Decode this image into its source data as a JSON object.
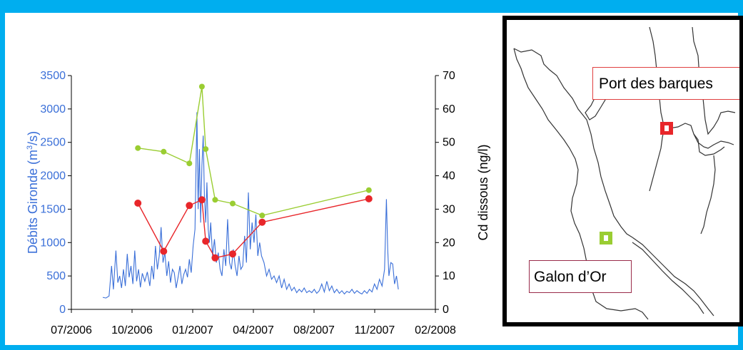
{
  "chart_data": {
    "type": "line",
    "x_axis": {
      "tick_labels": [
        "07/2006",
        "10/2006",
        "01/2007",
        "04/2007",
        "08/2007",
        "11/2007",
        "02/2008"
      ],
      "range": [
        "2006-07-01",
        "2008-02-01"
      ]
    },
    "y_left": {
      "label_pre": "Débits Gironde  (m",
      "label_sup": "3",
      "label_post": "/s)",
      "ticks": [
        "0",
        "500",
        "1000",
        "1500",
        "2000",
        "2500",
        "3000",
        "3500"
      ],
      "range": [
        0,
        3500
      ],
      "color": "#3a6fd8"
    },
    "y_right": {
      "label": "Cd dissous (ng/l)",
      "ticks": [
        "0",
        "10",
        "20",
        "30",
        "40",
        "50",
        "60",
        "70"
      ],
      "range": [
        0,
        70
      ]
    },
    "discharge_series": {
      "axis": "left",
      "color": "#3a6fd8",
      "points": [
        [
          "2006-08-20",
          180
        ],
        [
          "2006-08-25",
          170
        ],
        [
          "2006-08-30",
          200
        ],
        [
          "2006-09-03",
          650
        ],
        [
          "2006-09-06",
          300
        ],
        [
          "2006-09-10",
          880
        ],
        [
          "2006-09-13",
          400
        ],
        [
          "2006-09-16",
          500
        ],
        [
          "2006-09-19",
          320
        ],
        [
          "2006-09-22",
          600
        ],
        [
          "2006-09-25",
          350
        ],
        [
          "2006-09-28",
          830
        ],
        [
          "2006-10-01",
          480
        ],
        [
          "2006-10-04",
          650
        ],
        [
          "2006-10-07",
          380
        ],
        [
          "2006-10-10",
          880
        ],
        [
          "2006-10-13",
          420
        ],
        [
          "2006-10-16",
          600
        ],
        [
          "2006-10-19",
          330
        ],
        [
          "2006-10-22",
          540
        ],
        [
          "2006-10-26",
          420
        ],
        [
          "2006-10-30",
          560
        ],
        [
          "2006-11-03",
          350
        ],
        [
          "2006-11-06",
          650
        ],
        [
          "2006-11-09",
          450
        ],
        [
          "2006-11-12",
          950
        ],
        [
          "2006-11-15",
          600
        ],
        [
          "2006-11-18",
          800
        ],
        [
          "2006-11-21",
          1230
        ],
        [
          "2006-11-24",
          700
        ],
        [
          "2006-11-27",
          850
        ],
        [
          "2006-11-30",
          500
        ],
        [
          "2006-12-03",
          720
        ],
        [
          "2006-12-06",
          400
        ],
        [
          "2006-12-09",
          600
        ],
        [
          "2006-12-12",
          550
        ],
        [
          "2006-12-15",
          320
        ],
        [
          "2006-12-18",
          480
        ],
        [
          "2006-12-21",
          650
        ],
        [
          "2006-12-24",
          380
        ],
        [
          "2006-12-27",
          520
        ],
        [
          "2006-12-30",
          600
        ],
        [
          "2007-01-02",
          480
        ],
        [
          "2007-01-05",
          750
        ],
        [
          "2007-01-08",
          550
        ],
        [
          "2007-01-11",
          950
        ],
        [
          "2007-01-14",
          1200
        ],
        [
          "2007-01-17",
          2950
        ],
        [
          "2007-01-19",
          1500
        ],
        [
          "2007-01-21",
          2400
        ],
        [
          "2007-01-23",
          1300
        ],
        [
          "2007-01-25",
          2150
        ],
        [
          "2007-01-27",
          2600
        ],
        [
          "2007-01-29",
          1700
        ],
        [
          "2007-01-31",
          1300
        ],
        [
          "2007-02-02",
          1900
        ],
        [
          "2007-02-04",
          1200
        ],
        [
          "2007-02-06",
          1000
        ],
        [
          "2007-02-08",
          1300
        ],
        [
          "2007-02-11",
          800
        ],
        [
          "2007-02-14",
          1050
        ],
        [
          "2007-02-17",
          700
        ],
        [
          "2007-02-20",
          850
        ],
        [
          "2007-02-23",
          600
        ],
        [
          "2007-02-26",
          500
        ],
        [
          "2007-03-01",
          900
        ],
        [
          "2007-03-04",
          650
        ],
        [
          "2007-03-07",
          1350
        ],
        [
          "2007-03-10",
          700
        ],
        [
          "2007-03-13",
          600
        ],
        [
          "2007-03-16",
          900
        ],
        [
          "2007-03-19",
          650
        ],
        [
          "2007-03-22",
          500
        ],
        [
          "2007-03-25",
          800
        ],
        [
          "2007-03-28",
          600
        ],
        [
          "2007-03-31",
          650
        ],
        [
          "2007-04-03",
          1100
        ],
        [
          "2007-04-06",
          700
        ],
        [
          "2007-04-09",
          1750
        ],
        [
          "2007-04-12",
          900
        ],
        [
          "2007-04-15",
          1300
        ],
        [
          "2007-04-18",
          1000
        ],
        [
          "2007-04-21",
          1420
        ],
        [
          "2007-04-24",
          800
        ],
        [
          "2007-04-27",
          1000
        ],
        [
          "2007-04-30",
          800
        ],
        [
          "2007-05-04",
          700
        ],
        [
          "2007-05-08",
          500
        ],
        [
          "2007-05-12",
          600
        ],
        [
          "2007-05-16",
          450
        ],
        [
          "2007-05-20",
          500
        ],
        [
          "2007-05-24",
          400
        ],
        [
          "2007-05-28",
          500
        ],
        [
          "2007-06-01",
          320
        ],
        [
          "2007-06-05",
          450
        ],
        [
          "2007-06-09",
          300
        ],
        [
          "2007-06-13",
          380
        ],
        [
          "2007-06-17",
          280
        ],
        [
          "2007-06-21",
          330
        ],
        [
          "2007-06-25",
          250
        ],
        [
          "2007-06-29",
          300
        ],
        [
          "2007-07-03",
          260
        ],
        [
          "2007-07-07",
          320
        ],
        [
          "2007-07-11",
          250
        ],
        [
          "2007-07-15",
          280
        ],
        [
          "2007-07-19",
          250
        ],
        [
          "2007-07-23",
          300
        ],
        [
          "2007-07-27",
          240
        ],
        [
          "2007-07-31",
          280
        ],
        [
          "2007-08-04",
          380
        ],
        [
          "2007-08-08",
          260
        ],
        [
          "2007-08-12",
          420
        ],
        [
          "2007-08-16",
          280
        ],
        [
          "2007-08-20",
          350
        ],
        [
          "2007-08-24",
          250
        ],
        [
          "2007-08-28",
          300
        ],
        [
          "2007-09-01",
          240
        ],
        [
          "2007-09-05",
          280
        ],
        [
          "2007-09-09",
          230
        ],
        [
          "2007-09-13",
          270
        ],
        [
          "2007-09-17",
          250
        ],
        [
          "2007-09-21",
          300
        ],
        [
          "2007-09-25",
          240
        ],
        [
          "2007-09-29",
          280
        ],
        [
          "2007-10-03",
          250
        ],
        [
          "2007-10-07",
          230
        ],
        [
          "2007-10-11",
          280
        ],
        [
          "2007-10-15",
          240
        ],
        [
          "2007-10-19",
          300
        ],
        [
          "2007-10-23",
          260
        ],
        [
          "2007-10-27",
          380
        ],
        [
          "2007-10-31",
          300
        ],
        [
          "2007-11-04",
          450
        ],
        [
          "2007-11-08",
          350
        ],
        [
          "2007-11-12",
          600
        ],
        [
          "2007-11-15",
          1650
        ],
        [
          "2007-11-17",
          900
        ],
        [
          "2007-11-19",
          500
        ],
        [
          "2007-11-22",
          700
        ],
        [
          "2007-11-25",
          680
        ],
        [
          "2007-11-28",
          380
        ],
        [
          "2007-12-01",
          500
        ],
        [
          "2007-12-04",
          300
        ]
      ]
    },
    "cd_series": [
      {
        "axis": "right",
        "color": "#9acd32",
        "points": [
          [
            "2006-10-15",
            48.3
          ],
          [
            "2006-11-25",
            47.2
          ],
          [
            "2007-01-05",
            43.7
          ],
          [
            "2007-01-25",
            66.7
          ],
          [
            "2007-01-31",
            48.0
          ],
          [
            "2007-02-15",
            32.8
          ],
          [
            "2007-03-15",
            31.7
          ],
          [
            "2007-05-01",
            28.1
          ],
          [
            "2007-10-18",
            35.7
          ]
        ]
      },
      {
        "axis": "right",
        "color": "#e8262a",
        "points": [
          [
            "2006-10-15",
            31.8
          ],
          [
            "2006-11-25",
            17.4
          ],
          [
            "2007-01-05",
            31.1
          ],
          [
            "2007-01-25",
            32.8
          ],
          [
            "2007-01-31",
            20.4
          ],
          [
            "2007-02-15",
            15.4
          ],
          [
            "2007-03-15",
            16.6
          ],
          [
            "2007-05-01",
            26.1
          ],
          [
            "2007-10-18",
            33.1
          ]
        ]
      }
    ]
  },
  "map": {
    "port_label": "Port des barques",
    "galon_label": "Galon d’Or",
    "port_marker_color": "#e8262a",
    "galon_marker_color": "#9acd32"
  },
  "frame_color": "#00aeef"
}
